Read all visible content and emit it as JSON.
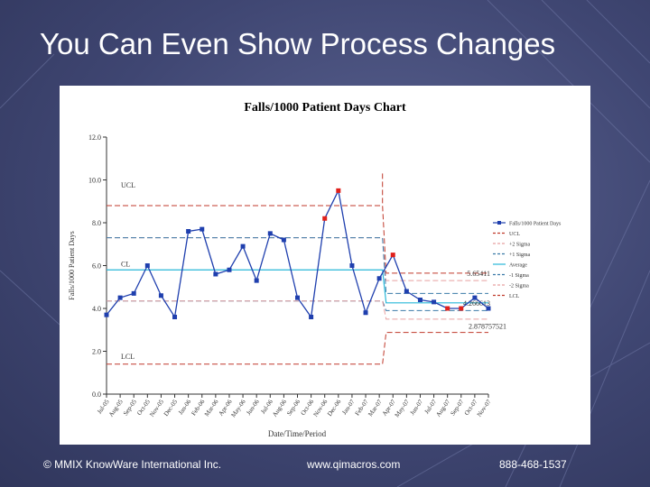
{
  "slide": {
    "title": "You Can Even Show Process Changes",
    "footer_left": "© MMIX KnowWare International Inc.",
    "footer_center": "www.qimacros.com",
    "footer_right": "888-468-1537"
  },
  "chart_data": {
    "type": "line",
    "title": "Falls/1000 Patient Days Chart",
    "xlabel": "Date/Time/Period",
    "ylabel": "Falls/1000 Patient Days",
    "ylim": [
      0,
      12
    ],
    "yticks": [
      0,
      2,
      4,
      6,
      8,
      10,
      12
    ],
    "ytick_labels": [
      "0.0",
      "2.0",
      "4.0",
      "6.0",
      "8.0",
      "10.0",
      "12.0"
    ],
    "categories": [
      "Jul-05",
      "Aug-05",
      "Sep-05",
      "Oct-05",
      "Nov-05",
      "Dec-05",
      "Jan-06",
      "Feb-06",
      "Mar-06",
      "Apr-06",
      "May-06",
      "Jun-06",
      "Jul-06",
      "Aug-06",
      "Sep-06",
      "Oct-06",
      "Nov-06",
      "Dec-06",
      "Jan-07",
      "Feb-07",
      "Mar-07",
      "Apr-07",
      "May-07",
      "Jun-07",
      "Jul-07",
      "Aug-07",
      "Sep-07",
      "Oct-07",
      "Nov-07"
    ],
    "series": [
      {
        "name": "Falls/1000 Patient Days",
        "color": "#1f3fae",
        "values": [
          3.7,
          4.5,
          4.7,
          6.0,
          4.6,
          3.6,
          7.6,
          7.7,
          5.6,
          5.8,
          6.9,
          5.3,
          7.5,
          7.2,
          4.5,
          3.6,
          8.2,
          9.5,
          6.0,
          3.8,
          5.4,
          6.5,
          4.8,
          4.4,
          4.3,
          4.0,
          4.0,
          4.5,
          4.0
        ]
      }
    ],
    "out_of_control_indices": [
      16,
      17,
      21,
      25,
      26
    ],
    "out_of_control_color": "#e0201b",
    "phase_break_index": 21,
    "control_limits": {
      "phase1": {
        "UCL": 8.8,
        "plus2": 7.3,
        "plus1": 7.3,
        "CL": 5.8,
        "minus1": 4.35,
        "minus2": 4.35,
        "LCL": 1.4
      },
      "phase2": {
        "UCL": 5.65,
        "plus2": 5.3,
        "plus1": 4.7,
        "CL": 4.26,
        "minus1": 3.9,
        "minus2": 3.5,
        "LCL": 2.88
      }
    },
    "annotations": {
      "ucl_label": "UCL",
      "cl_label": "CL",
      "lcl_label": "LCL",
      "ucl2_value": "5.65411",
      "cl2_value": "4.266613",
      "lcl2_value": "2.878757521"
    },
    "legend": {
      "position": "right",
      "entries": [
        {
          "label": "Falls/1000 Patient Days",
          "color": "#1f3fae",
          "style": "line-marker"
        },
        {
          "label": "UCL",
          "color": "#c0392b",
          "style": "dashed"
        },
        {
          "label": "+2 Sigma",
          "color": "#e8a0a0",
          "style": "dashed"
        },
        {
          "label": "+1 Sigma",
          "color": "#3a7aa8",
          "style": "dashed"
        },
        {
          "label": "Average",
          "color": "#29b8d8",
          "style": "solid"
        },
        {
          "label": "-1 Sigma",
          "color": "#3a7aa8",
          "style": "dashed"
        },
        {
          "label": "-2 Sigma",
          "color": "#e8a0a0",
          "style": "dashed"
        },
        {
          "label": "LCL",
          "color": "#c0392b",
          "style": "dashed"
        }
      ]
    }
  }
}
